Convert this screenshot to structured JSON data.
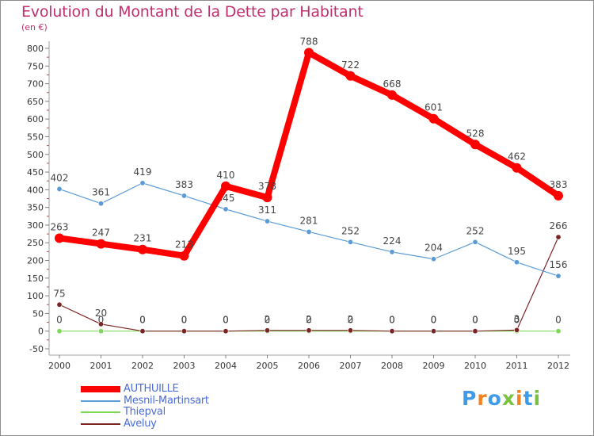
{
  "chart_data": {
    "type": "line",
    "title": "Evolution du Montant de la Dette par Habitant",
    "subtitle": "(en €)",
    "x": [
      "2000",
      "2001",
      "2002",
      "2003",
      "2004",
      "2005",
      "2006",
      "2007",
      "2008",
      "2009",
      "2010",
      "2011",
      "2012"
    ],
    "ylim": [
      -50,
      800
    ],
    "yticks": [
      "-50",
      "0",
      "50",
      "100",
      "150",
      "200",
      "250",
      "300",
      "350",
      "400",
      "450",
      "500",
      "550",
      "600",
      "650",
      "700",
      "750",
      "800"
    ],
    "grid": false,
    "legend_position": "bottom-left",
    "series": [
      {
        "name": "AUTHUILLE",
        "values": [
          263,
          247,
          231,
          213,
          410,
          378,
          788,
          722,
          668,
          601,
          528,
          462,
          383
        ],
        "labels": [
          "263",
          "247",
          "231",
          "213",
          "410",
          "378",
          "788",
          "722",
          "668",
          "601",
          "528",
          "462",
          "383"
        ],
        "color": "#ff0000"
      },
      {
        "name": "Mesnil-Martinsart",
        "values": [
          402,
          361,
          419,
          383,
          345,
          311,
          281,
          252,
          224,
          204,
          252,
          195,
          156
        ],
        "labels": [
          "402",
          "361",
          "419",
          "383",
          "345",
          "311",
          "281",
          "252",
          "224",
          "204",
          "252",
          "195",
          "156"
        ],
        "color": "#5b9bd5"
      },
      {
        "name": "Thiepval",
        "values": [
          0,
          0,
          0,
          0,
          0,
          0,
          0,
          0,
          0,
          0,
          0,
          0,
          0
        ],
        "labels": [
          "0",
          "0",
          "0",
          "0",
          "0",
          "0",
          "0",
          "0",
          "0",
          "0",
          "0",
          "0",
          "0"
        ],
        "color": "#7ed957"
      },
      {
        "name": "Aveluy",
        "values": [
          75,
          20,
          0,
          0,
          0,
          2,
          2,
          2,
          0,
          0,
          0,
          3,
          266
        ],
        "labels": [
          "75",
          "20",
          "0",
          "0",
          "0",
          "2",
          "2",
          "2",
          "0",
          "0",
          "0",
          "3",
          "266"
        ],
        "color": "#7a2424"
      }
    ]
  },
  "logo": {
    "text": "Proxiti",
    "colors": [
      "#3d9be9",
      "#f58220",
      "#3d9be9",
      "#7ac142",
      "#f58220",
      "#3d9be9",
      "#7ac142"
    ]
  }
}
